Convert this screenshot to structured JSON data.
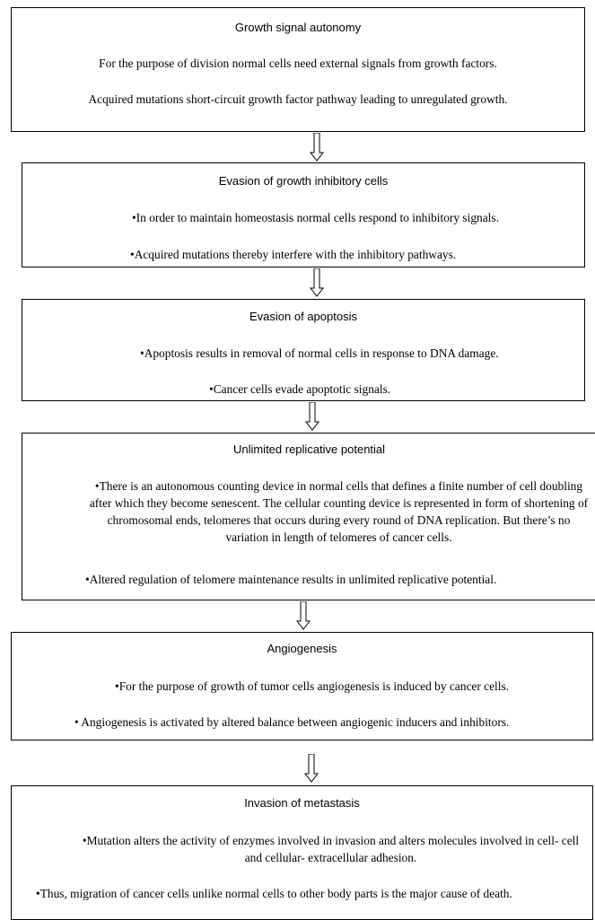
{
  "steps": [
    {
      "title": "Growth signal autonomy",
      "lines": [
        "For the purpose of division normal cells need external signals from growth factors.",
        "Acquired mutations short-circuit growth factor pathway leading  to unregulated growth."
      ]
    },
    {
      "title": "Evasion of growth inhibitory  cells",
      "lines": [
        "•In order to maintain homeostasis normal cells respond to inhibitory signals.",
        "•Acquired mutations thereby interfere with the inhibitory pathways."
      ]
    },
    {
      "title": "Evasion of apoptosis",
      "lines": [
        "•Apoptosis results in removal of normal cells in response to DNA damage.",
        "•Cancer cells evade apoptotic signals."
      ]
    },
    {
      "title": "Unlimited replicative potential",
      "lines": [
        "•There is an autonomous counting device in normal cells that defines a finite number of cell doubling after which they become senescent. The cellular counting device is represented in form of shortening of chromosomal ends, telomeres that occurs during every round of DNA replication. But there’s no variation in length of telomeres of cancer cells.",
        "•Altered regulation of telomere maintenance results in unlimited replicative  potential."
      ]
    },
    {
      "title": "Angiogenesis",
      "lines": [
        "•For the purpose of growth of tumor cells angiogenesis is induced by cancer cells.",
        "• Angiogenesis is activated by altered balance between angiogenic inducers and inhibitors."
      ]
    },
    {
      "title": "Invasion of metastasis",
      "lines": [
        "•Mutation alters the activity of enzymes involved in invasion and alters molecules involved in cell- cell and cellular- extracellular adhesion.",
        "•Thus, migration of cancer cells unlike normal cells to other body parts is the major cause of death."
      ]
    }
  ]
}
